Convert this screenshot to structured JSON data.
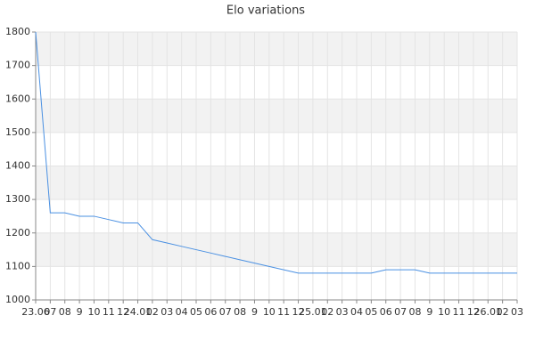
{
  "chart_data": {
    "type": "line",
    "title": "Elo variations",
    "categories": [
      "23.06",
      "07",
      "08",
      "9",
      "10",
      "11",
      "12",
      "24.01",
      "02",
      "03",
      "04",
      "05",
      "06",
      "07",
      "08",
      "9",
      "10",
      "11",
      "12",
      "25.01",
      "02",
      "03",
      "04",
      "05",
      "06",
      "07",
      "08",
      "9",
      "10",
      "11",
      "12",
      "26.01",
      "02",
      "03"
    ],
    "series": [
      {
        "name": "Elo",
        "color": "#4a90e2",
        "values": [
          1800,
          1260,
          1260,
          1250,
          1250,
          1240,
          1230,
          1230,
          1180,
          1170,
          1160,
          1150,
          1140,
          1130,
          1120,
          1110,
          1100,
          1090,
          1080,
          1080,
          1080,
          1080,
          1080,
          1080,
          1090,
          1090,
          1090,
          1080,
          1080,
          1080,
          1080,
          1080,
          1080,
          1080
        ]
      }
    ],
    "ylim": [
      1000,
      1800
    ],
    "yticks": [
      1000,
      1100,
      1200,
      1300,
      1400,
      1500,
      1600,
      1700,
      1800
    ],
    "grid": true,
    "band_color": "#f2f2f2"
  }
}
